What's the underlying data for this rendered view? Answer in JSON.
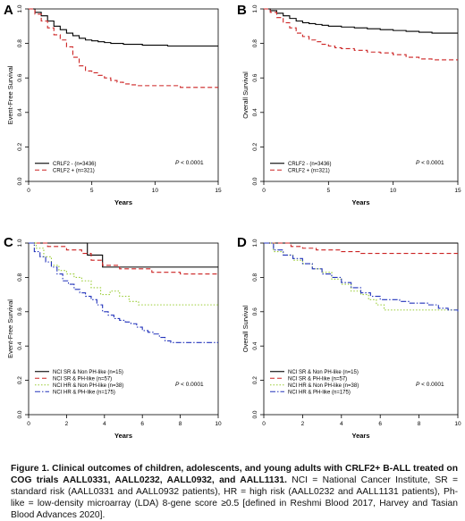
{
  "caption": {
    "bold": "Figure 1. Clinical outcomes of children, adolescents, and young adults with CRLF2+ B-ALL treated on COG trials AALL0331, AALL0232, AALL0932, and AALL1131.",
    "rest": " NCI = National Cancer Institute, SR = standard risk (AALL0331 and AALL0932 patients), HR = high risk (AALL0232 and AALL1131 patients), Ph-like = low-density microarray (LDA) 8-gene score ≥0.5 [defined in Reshmi Blood 2017, Harvey and Tasian Blood Advances 2020]."
  },
  "chart_data": [
    {
      "panel": "A",
      "type": "line",
      "step": true,
      "xlabel": "Years",
      "ylabel": "Event-Free Survival",
      "xlim": [
        0,
        15
      ],
      "ylim": [
        0,
        1
      ],
      "xticks": [
        "0",
        "5",
        "10",
        "15"
      ],
      "yticks": [
        "0.0",
        "0.2",
        "0.4",
        "0.6",
        "0.8",
        "1.0"
      ],
      "pvalue_label": "P",
      "pvalue_text": " < 0.0001",
      "legend_position": "bottom-left",
      "series": [
        {
          "name": "CRLF2 - (n=3436)",
          "color": "#000000",
          "dash": "solid",
          "x": [
            0,
            0.5,
            1,
            1.5,
            2,
            2.5,
            3,
            3.5,
            4,
            4.5,
            5,
            5.5,
            6,
            6.5,
            7,
            7.5,
            8,
            9,
            10,
            11,
            12,
            13,
            14,
            15
          ],
          "y": [
            1.0,
            0.98,
            0.96,
            0.93,
            0.9,
            0.88,
            0.86,
            0.845,
            0.83,
            0.82,
            0.815,
            0.81,
            0.805,
            0.8,
            0.8,
            0.795,
            0.795,
            0.79,
            0.79,
            0.785,
            0.785,
            0.785,
            0.785,
            0.785
          ]
        },
        {
          "name": "CRLF2 + (n=321)",
          "color": "#cc2222",
          "dash": "dashed",
          "x": [
            0,
            0.5,
            1,
            1.5,
            2,
            2.5,
            3,
            3.5,
            4,
            4.5,
            5,
            5.5,
            6,
            6.5,
            7,
            7.5,
            8,
            8.5,
            9,
            10,
            11,
            12,
            13,
            14,
            15
          ],
          "y": [
            1.0,
            0.97,
            0.93,
            0.89,
            0.85,
            0.82,
            0.78,
            0.72,
            0.67,
            0.64,
            0.63,
            0.615,
            0.6,
            0.585,
            0.575,
            0.565,
            0.56,
            0.555,
            0.555,
            0.555,
            0.555,
            0.545,
            0.545,
            0.545,
            0.545
          ]
        }
      ]
    },
    {
      "panel": "B",
      "type": "line",
      "step": true,
      "xlabel": "Years",
      "ylabel": "Overall Survival",
      "xlim": [
        0,
        15
      ],
      "ylim": [
        0,
        1
      ],
      "xticks": [
        "0",
        "5",
        "10",
        "15"
      ],
      "yticks": [
        "0.0",
        "0.2",
        "0.4",
        "0.6",
        "0.8",
        "1.0"
      ],
      "pvalue_label": "P",
      "pvalue_text": " < 0.0001",
      "legend_position": "bottom-left",
      "series": [
        {
          "name": "CRLF2 - (n=3436)",
          "color": "#000000",
          "dash": "solid",
          "x": [
            0,
            0.5,
            1,
            1.5,
            2,
            2.5,
            3,
            3.5,
            4,
            4.5,
            5,
            6,
            7,
            8,
            9,
            10,
            11,
            12,
            13,
            14,
            15
          ],
          "y": [
            1.0,
            0.99,
            0.975,
            0.96,
            0.945,
            0.93,
            0.92,
            0.915,
            0.91,
            0.905,
            0.9,
            0.895,
            0.89,
            0.885,
            0.88,
            0.875,
            0.87,
            0.865,
            0.86,
            0.86,
            0.86
          ]
        },
        {
          "name": "CRLF2 + (n=321)",
          "color": "#cc2222",
          "dash": "dashed",
          "x": [
            0,
            0.5,
            1,
            1.5,
            2,
            2.5,
            3,
            3.5,
            4,
            4.5,
            5,
            5.5,
            6,
            7,
            8,
            9,
            10,
            11,
            12,
            13,
            14,
            15
          ],
          "y": [
            1.0,
            0.98,
            0.95,
            0.92,
            0.89,
            0.86,
            0.84,
            0.82,
            0.81,
            0.795,
            0.785,
            0.775,
            0.77,
            0.76,
            0.75,
            0.745,
            0.735,
            0.72,
            0.71,
            0.705,
            0.705,
            0.705
          ]
        }
      ]
    },
    {
      "panel": "C",
      "type": "line",
      "step": true,
      "xlabel": "Years",
      "ylabel": "Event-Free Survival",
      "xlim": [
        0,
        10
      ],
      "ylim": [
        0,
        1
      ],
      "xticks": [
        "0",
        "2",
        "4",
        "6",
        "8",
        "10"
      ],
      "yticks": [
        "0.0",
        "0.2",
        "0.4",
        "0.6",
        "0.8",
        "1.0"
      ],
      "pvalue_label": "P",
      "pvalue_text": " < 0.0001",
      "legend_position": "bottom-left",
      "series": [
        {
          "name": "NCI SR & Non PH-like (n=15)",
          "color": "#000000",
          "dash": "solid",
          "x": [
            0,
            3.1,
            3.9,
            10
          ],
          "y": [
            1.0,
            0.93,
            0.86,
            0.86
          ]
        },
        {
          "name": "NCI SR & PH-like (n=57)",
          "color": "#cc2222",
          "dash": "dashed",
          "x": [
            0,
            1.0,
            2.0,
            2.8,
            3.3,
            3.9,
            4.8,
            6.5,
            8.0,
            10
          ],
          "y": [
            1.0,
            0.98,
            0.96,
            0.94,
            0.9,
            0.87,
            0.85,
            0.83,
            0.82,
            0.82
          ]
        },
        {
          "name": "NCI HR & Non PH-like (n=38)",
          "color": "#99cc33",
          "dash": "dotted",
          "x": [
            0,
            0.4,
            0.8,
            1.2,
            1.6,
            2.0,
            2.4,
            2.8,
            3.3,
            3.8,
            4.3,
            4.8,
            5.3,
            5.8,
            10
          ],
          "y": [
            1.0,
            0.97,
            0.92,
            0.87,
            0.84,
            0.82,
            0.8,
            0.78,
            0.74,
            0.7,
            0.72,
            0.69,
            0.66,
            0.64,
            0.64
          ]
        },
        {
          "name": "NCI HR & PH-like (n=175)",
          "color": "#2233bb",
          "dash": "dashdot",
          "x": [
            0,
            0.3,
            0.6,
            0.9,
            1.2,
            1.5,
            1.8,
            2.1,
            2.4,
            2.7,
            3.0,
            3.3,
            3.6,
            3.9,
            4.2,
            4.5,
            4.8,
            5.1,
            5.4,
            5.7,
            6.0,
            6.3,
            6.6,
            6.9,
            7.2,
            7.5,
            8.0,
            10
          ],
          "y": [
            1.0,
            0.95,
            0.92,
            0.89,
            0.86,
            0.82,
            0.78,
            0.76,
            0.73,
            0.71,
            0.69,
            0.67,
            0.64,
            0.6,
            0.58,
            0.56,
            0.55,
            0.54,
            0.53,
            0.51,
            0.49,
            0.48,
            0.47,
            0.45,
            0.43,
            0.42,
            0.42,
            0.42
          ]
        }
      ]
    },
    {
      "panel": "D",
      "type": "line",
      "step": true,
      "xlabel": "Years",
      "ylabel": "Overall Survival",
      "xlim": [
        0,
        10
      ],
      "ylim": [
        0,
        1
      ],
      "xticks": [
        "0",
        "2",
        "4",
        "6",
        "8",
        "10"
      ],
      "yticks": [
        "0.0",
        "0.2",
        "0.4",
        "0.6",
        "0.8",
        "1.0"
      ],
      "pvalue_label": "P",
      "pvalue_text": " < 0.0001",
      "legend_position": "bottom-left",
      "series": [
        {
          "name": "NCI SR & Non PH-like (n=15)",
          "color": "#000000",
          "dash": "solid",
          "x": [
            0,
            10
          ],
          "y": [
            1.0,
            1.0
          ]
        },
        {
          "name": "NCI SR & PH-like (n=57)",
          "color": "#cc2222",
          "dash": "dashed",
          "x": [
            0,
            1.4,
            2.0,
            2.7,
            4.0,
            5.0,
            10
          ],
          "y": [
            1.0,
            0.98,
            0.97,
            0.96,
            0.95,
            0.94,
            0.94
          ]
        },
        {
          "name": "NCI HR & Non PH-like (n=38)",
          "color": "#99cc33",
          "dash": "dotted",
          "x": [
            0,
            0.5,
            1.0,
            1.5,
            2.0,
            2.5,
            3.0,
            3.5,
            4.0,
            4.5,
            5.0,
            5.4,
            5.8,
            6.2,
            8.5,
            10
          ],
          "y": [
            1.0,
            0.95,
            0.93,
            0.9,
            0.88,
            0.85,
            0.83,
            0.79,
            0.76,
            0.72,
            0.7,
            0.67,
            0.64,
            0.61,
            0.61,
            0.61
          ]
        },
        {
          "name": "NCI HR & PH-like (n=175)",
          "color": "#2233bb",
          "dash": "dashdot",
          "x": [
            0,
            0.5,
            1.0,
            1.5,
            2.0,
            2.5,
            3.0,
            3.5,
            4.0,
            4.5,
            5.0,
            5.5,
            6.0,
            6.5,
            7.0,
            7.5,
            8.0,
            8.5,
            9.0,
            9.5,
            10
          ],
          "y": [
            1.0,
            0.96,
            0.93,
            0.91,
            0.88,
            0.85,
            0.82,
            0.8,
            0.77,
            0.74,
            0.71,
            0.69,
            0.67,
            0.67,
            0.66,
            0.65,
            0.65,
            0.64,
            0.62,
            0.61,
            0.6
          ]
        }
      ]
    }
  ]
}
